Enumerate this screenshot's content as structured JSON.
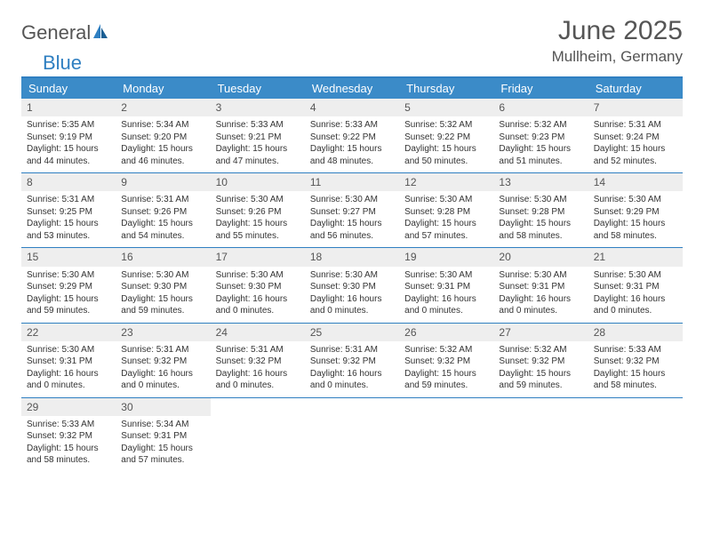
{
  "logo": {
    "word1": "General",
    "word2": "Blue"
  },
  "title": "June 2025",
  "location": "Mullheim, Germany",
  "colors": {
    "header_bg": "#3b8bc8",
    "header_text": "#ffffff",
    "rule": "#2f7fc1",
    "daynum_bg": "#eeeeee",
    "text": "#333333",
    "title_text": "#555555"
  },
  "weekdays": [
    "Sunday",
    "Monday",
    "Tuesday",
    "Wednesday",
    "Thursday",
    "Friday",
    "Saturday"
  ],
  "labels": {
    "sunrise": "Sunrise:",
    "sunset": "Sunset:",
    "daylight": "Daylight:"
  },
  "weeks": [
    [
      {
        "n": "1",
        "sr": "5:35 AM",
        "ss": "9:19 PM",
        "dl": "15 hours and 44 minutes."
      },
      {
        "n": "2",
        "sr": "5:34 AM",
        "ss": "9:20 PM",
        "dl": "15 hours and 46 minutes."
      },
      {
        "n": "3",
        "sr": "5:33 AM",
        "ss": "9:21 PM",
        "dl": "15 hours and 47 minutes."
      },
      {
        "n": "4",
        "sr": "5:33 AM",
        "ss": "9:22 PM",
        "dl": "15 hours and 48 minutes."
      },
      {
        "n": "5",
        "sr": "5:32 AM",
        "ss": "9:22 PM",
        "dl": "15 hours and 50 minutes."
      },
      {
        "n": "6",
        "sr": "5:32 AM",
        "ss": "9:23 PM",
        "dl": "15 hours and 51 minutes."
      },
      {
        "n": "7",
        "sr": "5:31 AM",
        "ss": "9:24 PM",
        "dl": "15 hours and 52 minutes."
      }
    ],
    [
      {
        "n": "8",
        "sr": "5:31 AM",
        "ss": "9:25 PM",
        "dl": "15 hours and 53 minutes."
      },
      {
        "n": "9",
        "sr": "5:31 AM",
        "ss": "9:26 PM",
        "dl": "15 hours and 54 minutes."
      },
      {
        "n": "10",
        "sr": "5:30 AM",
        "ss": "9:26 PM",
        "dl": "15 hours and 55 minutes."
      },
      {
        "n": "11",
        "sr": "5:30 AM",
        "ss": "9:27 PM",
        "dl": "15 hours and 56 minutes."
      },
      {
        "n": "12",
        "sr": "5:30 AM",
        "ss": "9:28 PM",
        "dl": "15 hours and 57 minutes."
      },
      {
        "n": "13",
        "sr": "5:30 AM",
        "ss": "9:28 PM",
        "dl": "15 hours and 58 minutes."
      },
      {
        "n": "14",
        "sr": "5:30 AM",
        "ss": "9:29 PM",
        "dl": "15 hours and 58 minutes."
      }
    ],
    [
      {
        "n": "15",
        "sr": "5:30 AM",
        "ss": "9:29 PM",
        "dl": "15 hours and 59 minutes."
      },
      {
        "n": "16",
        "sr": "5:30 AM",
        "ss": "9:30 PM",
        "dl": "15 hours and 59 minutes."
      },
      {
        "n": "17",
        "sr": "5:30 AM",
        "ss": "9:30 PM",
        "dl": "16 hours and 0 minutes."
      },
      {
        "n": "18",
        "sr": "5:30 AM",
        "ss": "9:30 PM",
        "dl": "16 hours and 0 minutes."
      },
      {
        "n": "19",
        "sr": "5:30 AM",
        "ss": "9:31 PM",
        "dl": "16 hours and 0 minutes."
      },
      {
        "n": "20",
        "sr": "5:30 AM",
        "ss": "9:31 PM",
        "dl": "16 hours and 0 minutes."
      },
      {
        "n": "21",
        "sr": "5:30 AM",
        "ss": "9:31 PM",
        "dl": "16 hours and 0 minutes."
      }
    ],
    [
      {
        "n": "22",
        "sr": "5:30 AM",
        "ss": "9:31 PM",
        "dl": "16 hours and 0 minutes."
      },
      {
        "n": "23",
        "sr": "5:31 AM",
        "ss": "9:32 PM",
        "dl": "16 hours and 0 minutes."
      },
      {
        "n": "24",
        "sr": "5:31 AM",
        "ss": "9:32 PM",
        "dl": "16 hours and 0 minutes."
      },
      {
        "n": "25",
        "sr": "5:31 AM",
        "ss": "9:32 PM",
        "dl": "16 hours and 0 minutes."
      },
      {
        "n": "26",
        "sr": "5:32 AM",
        "ss": "9:32 PM",
        "dl": "15 hours and 59 minutes."
      },
      {
        "n": "27",
        "sr": "5:32 AM",
        "ss": "9:32 PM",
        "dl": "15 hours and 59 minutes."
      },
      {
        "n": "28",
        "sr": "5:33 AM",
        "ss": "9:32 PM",
        "dl": "15 hours and 58 minutes."
      }
    ],
    [
      {
        "n": "29",
        "sr": "5:33 AM",
        "ss": "9:32 PM",
        "dl": "15 hours and 58 minutes."
      },
      {
        "n": "30",
        "sr": "5:34 AM",
        "ss": "9:31 PM",
        "dl": "15 hours and 57 minutes."
      },
      null,
      null,
      null,
      null,
      null
    ]
  ]
}
